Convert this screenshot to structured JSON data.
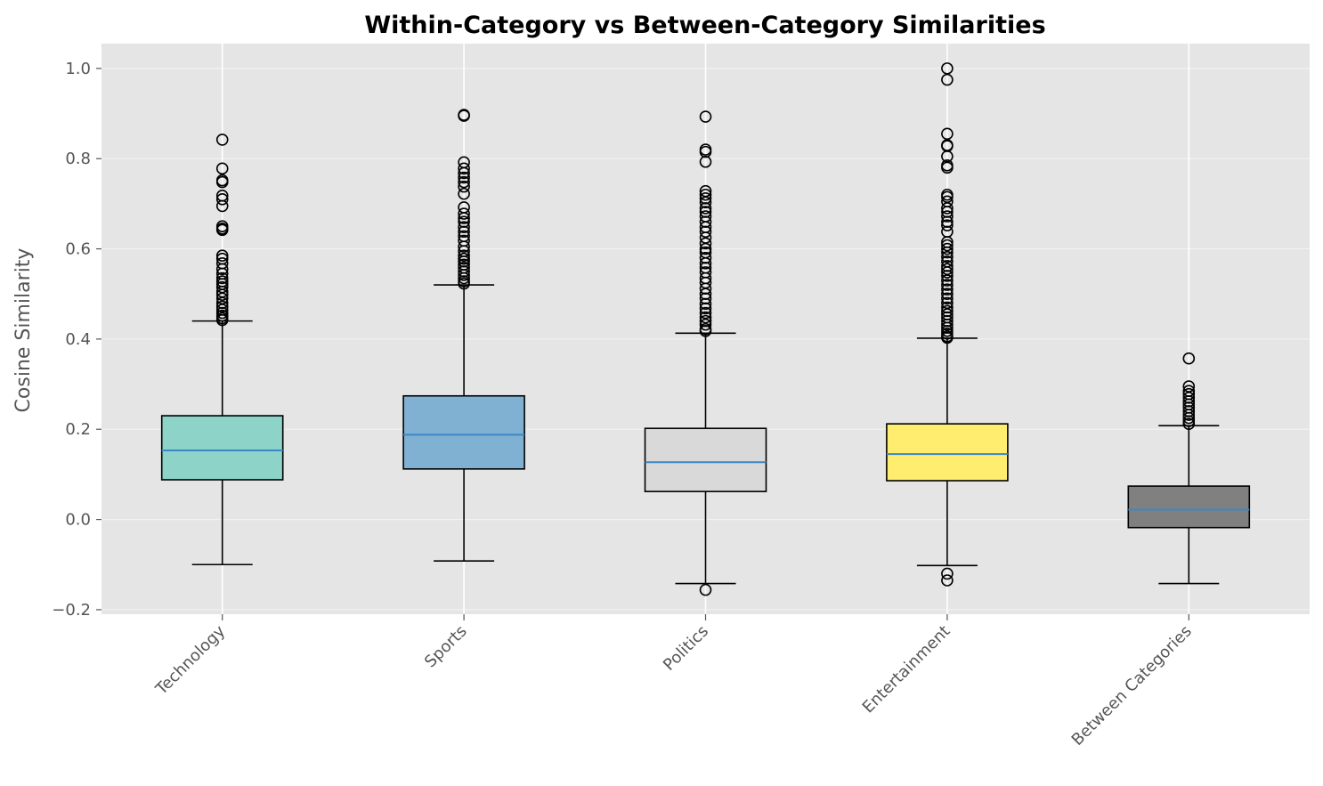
{
  "chart_data": {
    "type": "box",
    "title": "Within-Category vs Between-Category Similarities",
    "xlabel": "",
    "ylabel": "Cosine Similarity",
    "ylim": [
      -0.21,
      1.055
    ],
    "yticks": [
      -0.2,
      0.0,
      0.2,
      0.4,
      0.6,
      0.8,
      1.0
    ],
    "ytick_labels": [
      "−0.2",
      "0.0",
      "0.2",
      "0.4",
      "0.6",
      "0.8",
      "1.0"
    ],
    "grid": true,
    "categories": [
      "Technology",
      "Sports",
      "Politics",
      "Entertainment",
      "Between Categories"
    ],
    "boxes": [
      {
        "category": "Technology",
        "color": "#8dd3c7",
        "whisker_low": -0.1,
        "q1": 0.088,
        "median": 0.153,
        "q3": 0.23,
        "whisker_high": 0.44,
        "outliers": [
          0.842,
          0.778,
          0.752,
          0.748,
          0.718,
          0.71,
          0.695,
          0.65,
          0.645,
          0.642,
          0.585,
          0.578,
          0.568,
          0.555,
          0.545,
          0.535,
          0.528,
          0.522,
          0.515,
          0.505,
          0.498,
          0.49,
          0.48,
          0.472,
          0.465,
          0.458,
          0.452,
          0.446,
          0.442
        ]
      },
      {
        "category": "Sports",
        "color": "#80b1d3",
        "whisker_low": -0.092,
        "q1": 0.112,
        "median": 0.188,
        "q3": 0.274,
        "whisker_high": 0.52,
        "outliers": [
          0.897,
          0.895,
          0.792,
          0.778,
          0.768,
          0.758,
          0.748,
          0.738,
          0.722,
          0.692,
          0.678,
          0.668,
          0.66,
          0.648,
          0.638,
          0.628,
          0.618,
          0.605,
          0.595,
          0.585,
          0.578,
          0.572,
          0.565,
          0.558,
          0.55,
          0.542,
          0.535,
          0.528,
          0.523
        ]
      },
      {
        "category": "Politics",
        "color": "#d9d9d9",
        "whisker_low": -0.142,
        "q1": 0.062,
        "median": 0.127,
        "q3": 0.202,
        "whisker_high": 0.413,
        "outliers": [
          -0.156,
          0.893,
          0.82,
          0.815,
          0.793,
          0.728,
          0.72,
          0.712,
          0.703,
          0.69,
          0.682,
          0.672,
          0.66,
          0.648,
          0.638,
          0.625,
          0.612,
          0.6,
          0.592,
          0.58,
          0.568,
          0.558,
          0.548,
          0.535,
          0.525,
          0.512,
          0.5,
          0.49,
          0.478,
          0.468,
          0.458,
          0.448,
          0.44,
          0.432,
          0.422,
          0.418
        ]
      },
      {
        "category": "Entertainment",
        "color": "#ffed6f",
        "whisker_low": -0.102,
        "q1": 0.086,
        "median": 0.145,
        "q3": 0.212,
        "whisker_high": 0.402,
        "outliers": [
          -0.12,
          -0.135,
          1.0,
          0.975,
          0.855,
          0.83,
          0.828,
          0.805,
          0.785,
          0.78,
          0.72,
          0.715,
          0.705,
          0.69,
          0.682,
          0.672,
          0.66,
          0.652,
          0.638,
          0.615,
          0.608,
          0.6,
          0.592,
          0.582,
          0.572,
          0.562,
          0.555,
          0.548,
          0.54,
          0.53,
          0.52,
          0.51,
          0.5,
          0.49,
          0.48,
          0.47,
          0.462,
          0.455,
          0.448,
          0.44,
          0.432,
          0.425,
          0.418,
          0.412,
          0.406,
          0.403
        ]
      },
      {
        "category": "Between Categories",
        "color": "#808080",
        "whisker_low": -0.142,
        "q1": -0.018,
        "median": 0.022,
        "q3": 0.074,
        "whisker_high": 0.208,
        "outliers": [
          0.357,
          0.295,
          0.285,
          0.278,
          0.27,
          0.262,
          0.255,
          0.248,
          0.24,
          0.232,
          0.225,
          0.218,
          0.212
        ]
      }
    ],
    "style": {
      "background": "#e5e5e5",
      "grid_color": "#ffffff",
      "median_color": "#3a87c4",
      "box_edge": "#000000"
    }
  }
}
